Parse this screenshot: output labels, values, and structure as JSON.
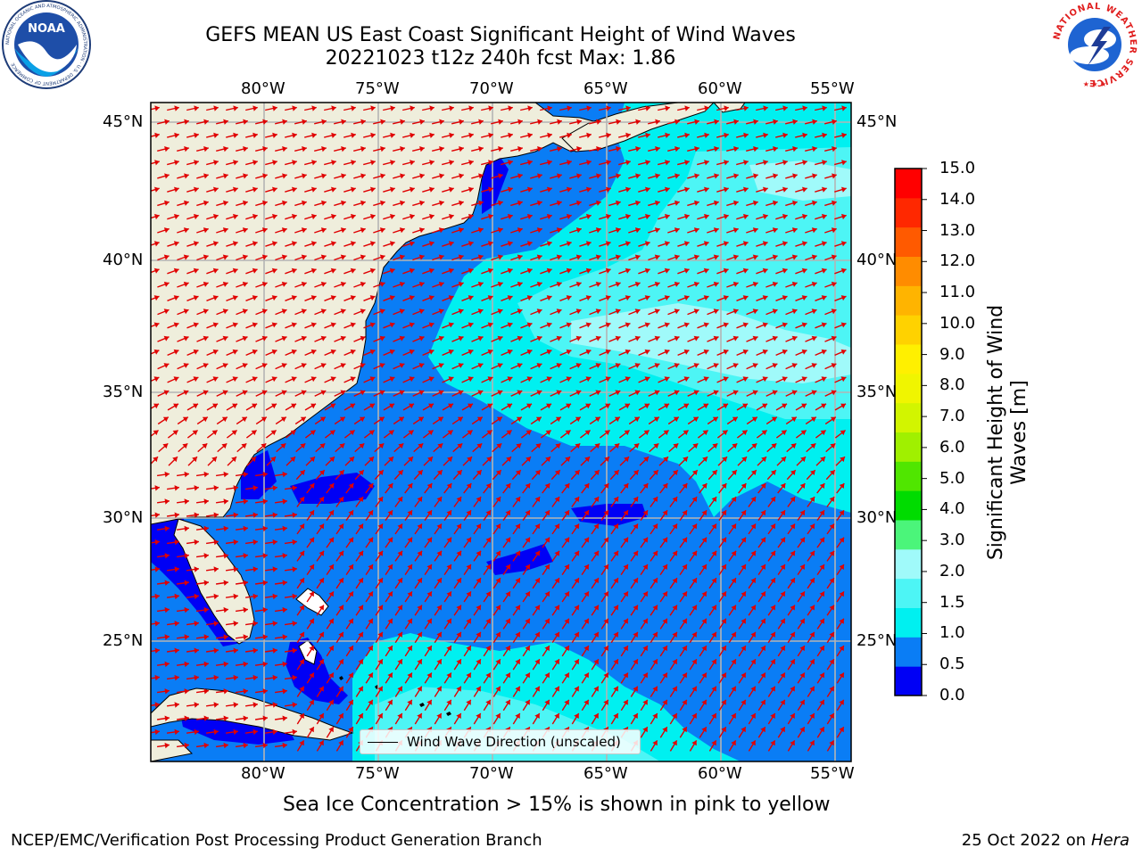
{
  "title": {
    "line1": "GEFS MEAN US East Coast Significant Height of Wind Waves",
    "line2": "20221023 t12z 240h fcst   Max: 1.86"
  },
  "map": {
    "lon_labels": [
      "80°W",
      "75°W",
      "70°W",
      "65°W",
      "60°W",
      "55°W"
    ],
    "lat_labels": [
      "45°N",
      "40°N",
      "35°N",
      "30°N",
      "25°N"
    ],
    "colors": {
      "land": "#efeedc",
      "deep_blue": "#0000f5",
      "mid_blue": "#0a7df5",
      "cyan": "#00f0f0",
      "light_cyan": "#4df5f5",
      "pale_cyan": "#a0fafa",
      "arrow": "#e00000",
      "grid": "#b4b4b4"
    }
  },
  "legend": {
    "label": "Wind Wave Direction (unscaled)"
  },
  "colorbar": {
    "ticks": [
      "0.0",
      "0.5",
      "1.0",
      "1.5",
      "2.0",
      "3.0",
      "4.0",
      "5.0",
      "6.0",
      "7.0",
      "8.0",
      "9.0",
      "10.0",
      "11.0",
      "12.0",
      "13.0",
      "14.0",
      "15.0"
    ],
    "colors": [
      "#0000f5",
      "#0a7df5",
      "#00f0f0",
      "#4df5f5",
      "#a0fafa",
      "#4bf57a",
      "#00dc00",
      "#50e600",
      "#a0f000",
      "#d2f500",
      "#f0f500",
      "#fff000",
      "#ffd200",
      "#ffb400",
      "#ff8c00",
      "#ff5a00",
      "#ff2800",
      "#ff0000"
    ],
    "label_line1": "Significant Height of Wind",
    "label_line2": "Waves [m]"
  },
  "footer": {
    "ice_note": "Sea Ice Concentration > 15% is shown in pink to yellow",
    "branch": "NCEP/EMC/Verification Post Processing Product Generation Branch",
    "date": "25 Oct 2022 on",
    "host": "Hera"
  },
  "logos": {
    "noaa": "NOAA",
    "noaa_ring": "NATIONAL OCEANIC AND ATMOSPHERIC ADMINISTRATION · U.S. DEPARTMENT OF COMMERCE",
    "nws_ring": "NATIONAL WEATHER SERVICE"
  }
}
